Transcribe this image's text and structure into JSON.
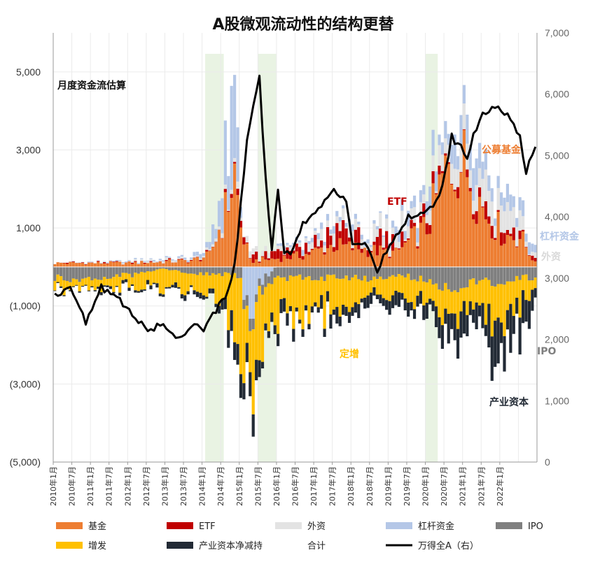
{
  "chart_data": {
    "type": "bar",
    "title": "A股微观流动性的结构更替",
    "subtitle": "月度资金流估算",
    "stacked": true,
    "y_left": {
      "lim": [
        -5000,
        6000
      ],
      "ticks": [
        5000,
        3000,
        1000,
        -1000,
        -3000,
        -5000
      ],
      "tick_labels": [
        "5,000",
        "3,000",
        "1,000",
        "(1,000)",
        "(3,000)",
        "(5,000)"
      ]
    },
    "y_right": {
      "lim": [
        0,
        7000
      ],
      "ticks": [
        0,
        1000,
        2000,
        3000,
        4000,
        5000,
        6000,
        7000
      ],
      "tick_labels": [
        "0",
        "1,000",
        "2,000",
        "3,000",
        "4,000",
        "5,000",
        "6,000",
        "7,000"
      ]
    },
    "x_ticks": [
      "2010年1月",
      "2010年7月",
      "2011年1月",
      "2011年7月",
      "2012年1月",
      "2012年7月",
      "2013年1月",
      "2013年7月",
      "2014年1月",
      "2014年7月",
      "2015年1月",
      "2015年7月",
      "2016年1月",
      "2016年7月",
      "2017年1月",
      "2017年7月",
      "2018年1月",
      "2018年7月",
      "2019年1月",
      "2019年7月",
      "2020年1月",
      "2020年7月",
      "2021年1月",
      "2021年7月",
      "2022年1月"
    ],
    "months": 156,
    "shaded_periods": [
      [
        49,
        54
      ],
      [
        66,
        71
      ],
      [
        120,
        123
      ]
    ],
    "series": [
      {
        "name": "基金",
        "color": "#ED7D31"
      },
      {
        "name": "ETF",
        "color": "#C00000"
      },
      {
        "name": "外资",
        "color": "#E3E3E3"
      },
      {
        "name": "杠杆资金",
        "color": "#B4C7E7"
      },
      {
        "name": "IPO",
        "color": "#7F7F7F"
      },
      {
        "name": "增发",
        "color": "#FFC000"
      },
      {
        "name": "产业资本净减持",
        "color": "#222A35"
      },
      {
        "name": "合计",
        "color": "#FFFFFF"
      },
      {
        "name": "万得全A（右）",
        "color": "#000000"
      }
    ],
    "anchors": {
      "fund": [
        [
          0,
          100
        ],
        [
          24,
          100
        ],
        [
          44,
          160
        ],
        [
          50,
          300
        ],
        [
          55,
          1400
        ],
        [
          58,
          2400
        ],
        [
          60,
          1000
        ],
        [
          63,
          150
        ],
        [
          70,
          200
        ],
        [
          80,
          300
        ],
        [
          90,
          550
        ],
        [
          100,
          450
        ],
        [
          110,
          350
        ],
        [
          115,
          700
        ],
        [
          120,
          1000
        ],
        [
          125,
          2200
        ],
        [
          130,
          2800
        ],
        [
          134,
          2400
        ],
        [
          138,
          1500
        ],
        [
          145,
          800
        ],
        [
          150,
          800
        ],
        [
          155,
          100
        ]
      ],
      "etf": [
        [
          0,
          15
        ],
        [
          48,
          20
        ],
        [
          60,
          100
        ],
        [
          65,
          150
        ],
        [
          86,
          180
        ],
        [
          92,
          520
        ],
        [
          100,
          250
        ],
        [
          115,
          250
        ],
        [
          124,
          200
        ],
        [
          130,
          350
        ],
        [
          140,
          300
        ],
        [
          150,
          200
        ],
        [
          155,
          50
        ]
      ],
      "foreign": [
        [
          0,
          0
        ],
        [
          48,
          50
        ],
        [
          60,
          100
        ],
        [
          75,
          80
        ],
        [
          90,
          200
        ],
        [
          100,
          250
        ],
        [
          110,
          300
        ],
        [
          125,
          300
        ],
        [
          135,
          450
        ],
        [
          145,
          450
        ],
        [
          155,
          100
        ]
      ],
      "margin": [
        [
          0,
          0
        ],
        [
          40,
          30
        ],
        [
          48,
          100
        ],
        [
          52,
          500
        ],
        [
          57,
          2200
        ],
        [
          60,
          300
        ],
        [
          62,
          -1500
        ],
        [
          66,
          -400
        ],
        [
          72,
          50
        ],
        [
          80,
          100
        ],
        [
          95,
          150
        ],
        [
          105,
          50
        ],
        [
          115,
          300
        ],
        [
          125,
          500
        ],
        [
          132,
          700
        ],
        [
          140,
          400
        ],
        [
          150,
          300
        ],
        [
          155,
          200
        ]
      ],
      "ipo": [
        [
          0,
          -300
        ],
        [
          12,
          -280
        ],
        [
          24,
          -220
        ],
        [
          34,
          -40
        ],
        [
          48,
          -180
        ],
        [
          60,
          -220
        ],
        [
          70,
          -280
        ],
        [
          84,
          -260
        ],
        [
          100,
          -300
        ],
        [
          110,
          -200
        ],
        [
          118,
          -300
        ],
        [
          126,
          -600
        ],
        [
          130,
          -500
        ],
        [
          145,
          -350
        ],
        [
          155,
          -250
        ]
      ],
      "placement": [
        [
          0,
          -250
        ],
        [
          24,
          -300
        ],
        [
          35,
          -450
        ],
        [
          48,
          -400
        ],
        [
          55,
          -800
        ],
        [
          60,
          -1800
        ],
        [
          67,
          -1200
        ],
        [
          75,
          -900
        ],
        [
          85,
          -900
        ],
        [
          95,
          -600
        ],
        [
          105,
          -500
        ],
        [
          114,
          -500
        ],
        [
          125,
          -600
        ],
        [
          135,
          -700
        ],
        [
          145,
          -1000
        ],
        [
          155,
          -350
        ]
      ],
      "industry": [
        [
          0,
          -20
        ],
        [
          30,
          -80
        ],
        [
          48,
          -100
        ],
        [
          55,
          -200
        ],
        [
          60,
          -700
        ],
        [
          67,
          -250
        ],
        [
          80,
          -200
        ],
        [
          92,
          -300
        ],
        [
          105,
          -200
        ],
        [
          118,
          -300
        ],
        [
          128,
          -500
        ],
        [
          138,
          -600
        ],
        [
          146,
          -1000
        ],
        [
          150,
          -800
        ],
        [
          155,
          -300
        ]
      ],
      "index": [
        [
          0,
          2700
        ],
        [
          5,
          2900
        ],
        [
          10,
          2250
        ],
        [
          15,
          2850
        ],
        [
          20,
          2700
        ],
        [
          25,
          2400
        ],
        [
          30,
          2150
        ],
        [
          35,
          2250
        ],
        [
          40,
          2000
        ],
        [
          45,
          2300
        ],
        [
          48,
          2100
        ],
        [
          50,
          2350
        ],
        [
          55,
          2700
        ],
        [
          58,
          3200
        ],
        [
          62,
          5200
        ],
        [
          66,
          6300
        ],
        [
          68,
          4600
        ],
        [
          70,
          3500
        ],
        [
          72,
          4500
        ],
        [
          74,
          3400
        ],
        [
          76,
          3400
        ],
        [
          78,
          3600
        ],
        [
          80,
          3900
        ],
        [
          84,
          4100
        ],
        [
          90,
          4400
        ],
        [
          94,
          4300
        ],
        [
          96,
          3600
        ],
        [
          100,
          3550
        ],
        [
          104,
          3100
        ],
        [
          108,
          3550
        ],
        [
          114,
          4000
        ],
        [
          118,
          4050
        ],
        [
          124,
          4300
        ],
        [
          128,
          5300
        ],
        [
          133,
          5000
        ],
        [
          137,
          5600
        ],
        [
          141,
          5800
        ],
        [
          146,
          5650
        ],
        [
          150,
          5300
        ],
        [
          152,
          4750
        ],
        [
          155,
          5100
        ]
      ]
    },
    "annotations": [
      {
        "text": "公募基金",
        "color": "#ED7D31"
      },
      {
        "text": "ETF",
        "color": "#C00000"
      },
      {
        "text": "杠杆资金",
        "color": "#B4C7E7"
      },
      {
        "text": "外资",
        "color": "#D9D9D9"
      },
      {
        "text": "IPO",
        "color": "#7F7F7F"
      },
      {
        "text": "定增",
        "color": "#FFC000"
      },
      {
        "text": "产业资本",
        "color": "#222A35"
      }
    ]
  }
}
